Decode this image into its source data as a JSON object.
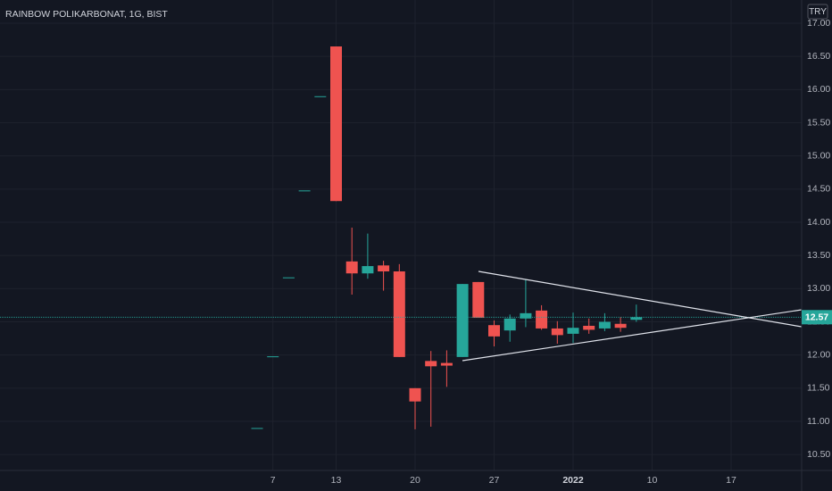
{
  "chart_data": {
    "type": "candlestick",
    "title": "RAINBOW POLIKARBONAT, 1G, BIST",
    "currency": "TRY",
    "categories": [
      null,
      "7",
      null,
      null,
      null,
      "13",
      null,
      null,
      null,
      null,
      "20",
      null,
      null,
      null,
      null,
      "27",
      null,
      null,
      null,
      null,
      "2022",
      null,
      null,
      null,
      null,
      "10",
      null,
      null,
      null,
      null,
      "17",
      null,
      null,
      null
    ],
    "open": [
      10.9,
      11.98,
      13.17,
      14.48,
      15.9,
      16.65,
      13.41,
      13.23,
      13.35,
      13.26,
      11.5,
      11.91,
      11.88,
      11.97,
      13.1,
      12.45,
      12.37,
      12.55,
      12.67,
      12.4,
      12.32,
      12.44,
      12.4,
      12.47,
      12.53,
      null,
      null,
      null,
      null,
      null,
      null,
      null,
      null,
      null
    ],
    "high": [
      10.9,
      11.98,
      13.17,
      14.48,
      15.9,
      16.65,
      13.92,
      13.83,
      13.42,
      13.37,
      11.5,
      12.06,
      12.07,
      13.07,
      13.1,
      12.52,
      12.61,
      13.14,
      12.75,
      12.51,
      12.64,
      12.55,
      12.63,
      12.57,
      12.76,
      null,
      null,
      null,
      null,
      null,
      null,
      null,
      null,
      null
    ],
    "low": [
      10.9,
      11.98,
      13.17,
      14.48,
      15.9,
      14.32,
      12.91,
      13.15,
      12.97,
      11.97,
      10.88,
      10.92,
      11.52,
      11.97,
      12.56,
      12.13,
      12.2,
      12.42,
      12.38,
      12.17,
      12.18,
      12.32,
      12.36,
      12.35,
      12.5,
      null,
      null,
      null,
      null,
      null,
      null,
      null,
      null,
      null
    ],
    "close": [
      10.9,
      11.98,
      13.17,
      14.48,
      15.9,
      14.32,
      13.23,
      13.34,
      13.26,
      11.97,
      11.3,
      11.83,
      11.84,
      13.07,
      12.56,
      12.28,
      12.55,
      12.63,
      12.4,
      12.3,
      12.41,
      12.38,
      12.5,
      12.41,
      12.57,
      null,
      null,
      null,
      null,
      null,
      null,
      null,
      null,
      null
    ],
    "up_color": "#26a69a",
    "down_color": "#ef5350",
    "ylim": [
      10.26,
      17.35
    ],
    "yticks": [
      {
        "value": 10.5,
        "label": "10.50"
      },
      {
        "value": 11,
        "label": "11.00"
      },
      {
        "value": 11.5,
        "label": "11.50"
      },
      {
        "value": 12,
        "label": "12.00"
      },
      {
        "value": 12.5,
        "label": "12.50"
      },
      {
        "value": 13,
        "label": "13.00"
      },
      {
        "value": 13.5,
        "label": "13.50"
      },
      {
        "value": 14,
        "label": "14.00"
      },
      {
        "value": 14.5,
        "label": "14.50"
      },
      {
        "value": 15,
        "label": "15.00"
      },
      {
        "value": 15.5,
        "label": "15.50"
      },
      {
        "value": 16,
        "label": "16.00"
      },
      {
        "value": 16.5,
        "label": "16.50"
      },
      {
        "value": 17,
        "label": "17.00"
      }
    ],
    "last_price": {
      "value": 12.57,
      "label": "12.57"
    },
    "grid": true
  }
}
